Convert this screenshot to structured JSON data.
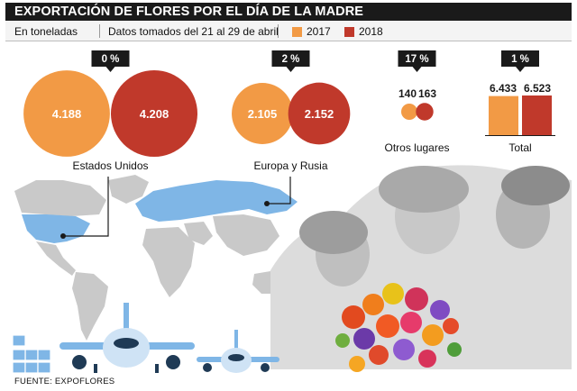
{
  "header": {
    "title": "EXPORTACIÓN DE FLORES POR EL DÍA DE LA MADRE",
    "unit": "En toneladas",
    "dates": "Datos tomados del 21 al 29 de abril"
  },
  "colors": {
    "y2017": "#f29a45",
    "y2018": "#c0392b",
    "dark": "#1a1a1a",
    "map_gray": "#c9c9c9",
    "map_blue": "#7fb6e6"
  },
  "chart_data": {
    "type": "bar",
    "title": "EXPORTACIÓN DE FLORES POR EL DÍA DE LA MADRE",
    "subtitle": "Datos tomados del 21 al 29 de abril",
    "unit": "En toneladas",
    "legend": [
      "2017",
      "2018"
    ],
    "categories": [
      "Estados Unidos",
      "Europa y Rusia",
      "Otros lugares",
      "Total"
    ],
    "series": [
      {
        "name": "2017",
        "values": [
          4188,
          2105,
          140,
          6433
        ],
        "labels": [
          "4.188",
          "2.105",
          "140",
          "6.433"
        ]
      },
      {
        "name": "2018",
        "values": [
          4208,
          2152,
          163,
          6523
        ],
        "labels": [
          "4.208",
          "2.152",
          "163",
          "6.523"
        ]
      }
    ],
    "growth_labels": [
      "0 %",
      "2 %",
      "17 %",
      "1 %"
    ]
  },
  "source": "FUENTE: EXPOFLORES"
}
